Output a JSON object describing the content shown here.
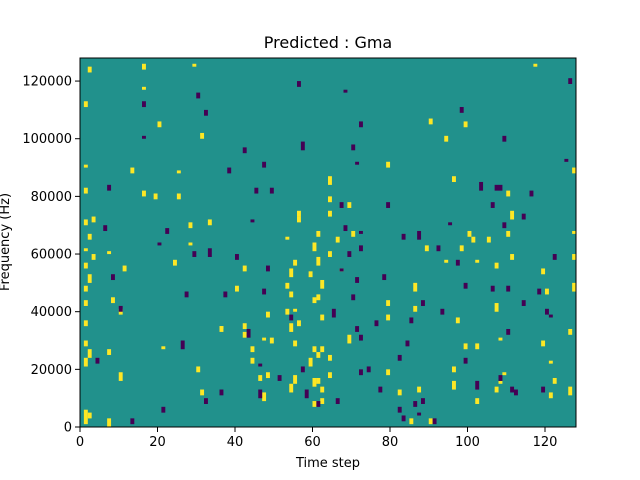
{
  "chart_data": {
    "type": "heatmap",
    "title": "Predicted : Gma",
    "xlabel": "Time step",
    "ylabel": "Frequency (Hz)",
    "xlim": [
      0,
      128
    ],
    "ylim": [
      0,
      128000
    ],
    "xticks": [
      0,
      20,
      40,
      60,
      80,
      100,
      120
    ],
    "yticks": [
      0,
      20000,
      40000,
      60000,
      80000,
      100000,
      120000
    ],
    "xtick_labels": [
      "0",
      "20",
      "40",
      "60",
      "80",
      "100",
      "120"
    ],
    "ytick_labels": [
      "0",
      "20000",
      "40000",
      "60000",
      "80000",
      "100000",
      "120000"
    ],
    "grid": false,
    "colormap": "viridis",
    "colors": {
      "background": "#21918c",
      "high": "#fde725",
      "low": "#440154",
      "frame": "#000000"
    },
    "n_bins": [
      128,
      128
    ],
    "cells_high": [
      [
        1,
        1,
        5
      ],
      [
        1,
        21,
        3
      ],
      [
        1,
        28,
        2
      ],
      [
        1,
        35,
        2
      ],
      [
        1,
        42,
        2
      ],
      [
        1,
        47,
        2
      ],
      [
        1,
        55,
        2
      ],
      [
        1,
        61,
        1
      ],
      [
        1,
        70,
        2
      ],
      [
        1,
        81,
        2
      ],
      [
        1,
        90,
        1
      ],
      [
        1,
        111,
        2
      ],
      [
        2,
        3,
        2
      ],
      [
        2,
        24,
        3
      ],
      [
        2,
        50,
        3
      ],
      [
        2,
        65,
        2
      ],
      [
        2,
        123,
        2
      ],
      [
        3,
        58,
        2
      ],
      [
        3,
        71,
        2
      ],
      [
        7,
        0,
        3
      ],
      [
        7,
        25,
        2
      ],
      [
        7,
        60,
        1
      ],
      [
        8,
        43,
        2
      ],
      [
        10,
        16,
        3
      ],
      [
        10,
        39,
        2
      ],
      [
        11,
        54,
        2
      ],
      [
        13,
        88,
        2
      ],
      [
        16,
        80,
        2
      ],
      [
        16,
        117,
        1
      ],
      [
        16,
        124,
        2
      ],
      [
        19,
        79,
        2
      ],
      [
        20,
        104,
        2
      ],
      [
        21,
        27,
        1
      ],
      [
        24,
        56,
        2
      ],
      [
        25,
        79,
        2
      ],
      [
        25,
        88,
        1
      ],
      [
        28,
        63,
        1
      ],
      [
        28,
        69,
        2
      ],
      [
        29,
        125,
        1
      ],
      [
        30,
        19,
        2
      ],
      [
        31,
        11,
        2
      ],
      [
        31,
        100,
        2
      ],
      [
        33,
        70,
        2
      ],
      [
        36,
        33,
        2
      ],
      [
        36,
        34,
        1
      ],
      [
        40,
        47,
        2
      ],
      [
        42,
        31,
        2
      ],
      [
        42,
        34,
        2
      ],
      [
        42,
        54,
        2
      ],
      [
        44,
        22,
        2
      ],
      [
        44,
        26,
        2
      ],
      [
        46,
        16,
        2
      ],
      [
        47,
        9,
        3
      ],
      [
        47,
        30,
        1
      ],
      [
        48,
        17,
        2
      ],
      [
        48,
        38,
        2
      ],
      [
        49,
        29,
        2
      ],
      [
        53,
        39,
        2
      ],
      [
        53,
        48,
        2
      ],
      [
        53,
        65,
        1
      ],
      [
        54,
        12,
        3
      ],
      [
        54,
        33,
        3
      ],
      [
        54,
        45,
        2
      ],
      [
        54,
        52,
        3
      ],
      [
        55,
        15,
        3
      ],
      [
        55,
        28,
        2
      ],
      [
        55,
        40,
        1
      ],
      [
        55,
        56,
        2
      ],
      [
        56,
        35,
        2
      ],
      [
        56,
        71,
        2
      ],
      [
        56,
        73,
        2
      ],
      [
        59,
        21,
        3
      ],
      [
        59,
        52,
        2
      ],
      [
        60,
        7,
        2
      ],
      [
        60,
        14,
        3
      ],
      [
        60,
        26,
        2
      ],
      [
        60,
        43,
        2
      ],
      [
        60,
        61,
        3
      ],
      [
        61,
        15,
        2
      ],
      [
        61,
        24,
        2
      ],
      [
        61,
        44,
        2
      ],
      [
        61,
        56,
        3
      ],
      [
        61,
        66,
        2
      ],
      [
        62,
        8,
        2
      ],
      [
        62,
        12,
        2
      ],
      [
        62,
        26,
        2
      ],
      [
        62,
        37,
        2
      ],
      [
        62,
        48,
        3
      ],
      [
        64,
        17,
        2
      ],
      [
        64,
        23,
        2
      ],
      [
        64,
        59,
        2
      ],
      [
        64,
        73,
        2
      ],
      [
        64,
        78,
        2
      ],
      [
        64,
        84,
        3
      ],
      [
        66,
        64,
        2
      ],
      [
        67,
        54,
        1
      ],
      [
        69,
        29,
        3
      ],
      [
        69,
        76,
        2
      ],
      [
        70,
        66,
        2
      ],
      [
        79,
        18,
        2
      ],
      [
        79,
        37,
        2
      ],
      [
        79,
        42,
        2
      ],
      [
        79,
        90,
        2
      ],
      [
        82,
        11,
        2
      ],
      [
        85,
        1,
        2
      ],
      [
        86,
        40,
        2
      ],
      [
        86,
        47,
        3
      ],
      [
        87,
        12,
        2
      ],
      [
        89,
        61,
        2
      ],
      [
        90,
        1,
        2
      ],
      [
        90,
        105,
        2
      ],
      [
        94,
        57,
        1
      ],
      [
        94,
        99,
        2
      ],
      [
        96,
        13,
        3
      ],
      [
        96,
        19,
        2
      ],
      [
        96,
        85,
        2
      ],
      [
        97,
        36,
        2
      ],
      [
        98,
        61,
        2
      ],
      [
        99,
        27,
        2
      ],
      [
        99,
        104,
        2
      ],
      [
        100,
        66,
        2
      ],
      [
        101,
        64,
        2
      ],
      [
        102,
        8,
        2
      ],
      [
        102,
        27,
        2
      ],
      [
        102,
        57,
        1
      ],
      [
        105,
        64,
        2
      ],
      [
        107,
        12,
        2
      ],
      [
        107,
        40,
        3
      ],
      [
        107,
        55,
        2
      ],
      [
        108,
        15,
        1
      ],
      [
        108,
        30,
        1
      ],
      [
        109,
        18,
        1
      ],
      [
        110,
        66,
        2
      ],
      [
        110,
        80,
        2
      ],
      [
        111,
        58,
        2
      ],
      [
        111,
        72,
        3
      ],
      [
        117,
        125,
        1
      ],
      [
        119,
        28,
        2
      ],
      [
        119,
        53,
        2
      ],
      [
        120,
        46,
        2
      ],
      [
        121,
        10,
        2
      ],
      [
        121,
        22,
        1
      ],
      [
        122,
        15,
        2
      ],
      [
        126,
        11,
        3
      ],
      [
        126,
        32,
        2
      ],
      [
        127,
        47,
        3
      ],
      [
        127,
        58,
        2
      ],
      [
        127,
        67,
        1
      ],
      [
        127,
        88,
        2
      ]
    ],
    "cells_low": [
      [
        4,
        22,
        2
      ],
      [
        6,
        68,
        2
      ],
      [
        7,
        82,
        2
      ],
      [
        8,
        51,
        2
      ],
      [
        10,
        40,
        2
      ],
      [
        13,
        1,
        2
      ],
      [
        16,
        100,
        1
      ],
      [
        16,
        111,
        2
      ],
      [
        20,
        63,
        1
      ],
      [
        21,
        5,
        2
      ],
      [
        22,
        67,
        2
      ],
      [
        26,
        27,
        3
      ],
      [
        27,
        45,
        2
      ],
      [
        29,
        59,
        2
      ],
      [
        30,
        114,
        2
      ],
      [
        32,
        8,
        2
      ],
      [
        32,
        108,
        2
      ],
      [
        33,
        59,
        3
      ],
      [
        36,
        11,
        2
      ],
      [
        37,
        45,
        2
      ],
      [
        38,
        88,
        2
      ],
      [
        40,
        58,
        2
      ],
      [
        42,
        95,
        2
      ],
      [
        43,
        31,
        3
      ],
      [
        44,
        71,
        1
      ],
      [
        45,
        81,
        2
      ],
      [
        46,
        10,
        3
      ],
      [
        46,
        21,
        1
      ],
      [
        47,
        46,
        2
      ],
      [
        47,
        90,
        2
      ],
      [
        48,
        54,
        2
      ],
      [
        49,
        81,
        2
      ],
      [
        51,
        16,
        2
      ],
      [
        54,
        37,
        2
      ],
      [
        56,
        118,
        2
      ],
      [
        57,
        19,
        2
      ],
      [
        57,
        96,
        3
      ],
      [
        58,
        10,
        3
      ],
      [
        61,
        7,
        2
      ],
      [
        65,
        38,
        3
      ],
      [
        66,
        8,
        2
      ],
      [
        67,
        54,
        1
      ],
      [
        67,
        76,
        2
      ],
      [
        68,
        68,
        2
      ],
      [
        68,
        116,
        1
      ],
      [
        69,
        59,
        2
      ],
      [
        70,
        44,
        2
      ],
      [
        70,
        96,
        2
      ],
      [
        71,
        33,
        2
      ],
      [
        71,
        50,
        2
      ],
      [
        71,
        91,
        1
      ],
      [
        72,
        18,
        2
      ],
      [
        72,
        30,
        2
      ],
      [
        72,
        61,
        2
      ],
      [
        72,
        67,
        1
      ],
      [
        72,
        104,
        2
      ],
      [
        74,
        19,
        2
      ],
      [
        76,
        35,
        2
      ],
      [
        77,
        12,
        2
      ],
      [
        78,
        51,
        2
      ],
      [
        79,
        76,
        2
      ],
      [
        82,
        5,
        2
      ],
      [
        82,
        23,
        2
      ],
      [
        83,
        2,
        2
      ],
      [
        83,
        65,
        2
      ],
      [
        84,
        28,
        2
      ],
      [
        85,
        36,
        2
      ],
      [
        86,
        7,
        2
      ],
      [
        87,
        4,
        1
      ],
      [
        87,
        65,
        3
      ],
      [
        88,
        8,
        2
      ],
      [
        88,
        42,
        2
      ],
      [
        91,
        1,
        2
      ],
      [
        92,
        61,
        2
      ],
      [
        93,
        39,
        2
      ],
      [
        95,
        70,
        1
      ],
      [
        97,
        56,
        2
      ],
      [
        98,
        109,
        2
      ],
      [
        99,
        22,
        2
      ],
      [
        99,
        48,
        2
      ],
      [
        102,
        13,
        3
      ],
      [
        103,
        82,
        3
      ],
      [
        106,
        47,
        2
      ],
      [
        106,
        76,
        2
      ],
      [
        107,
        82,
        2
      ],
      [
        108,
        16,
        2
      ],
      [
        108,
        82,
        2
      ],
      [
        109,
        69,
        2
      ],
      [
        109,
        99,
        2
      ],
      [
        110,
        32,
        2
      ],
      [
        110,
        47,
        2
      ],
      [
        111,
        12,
        2
      ],
      [
        112,
        11,
        2
      ],
      [
        114,
        42,
        2
      ],
      [
        114,
        72,
        2
      ],
      [
        116,
        80,
        2
      ],
      [
        118,
        46,
        2
      ],
      [
        119,
        12,
        2
      ],
      [
        120,
        39,
        2
      ],
      [
        121,
        38,
        1
      ],
      [
        122,
        58,
        2
      ],
      [
        125,
        92,
        1
      ],
      [
        126,
        119,
        2
      ]
    ]
  }
}
